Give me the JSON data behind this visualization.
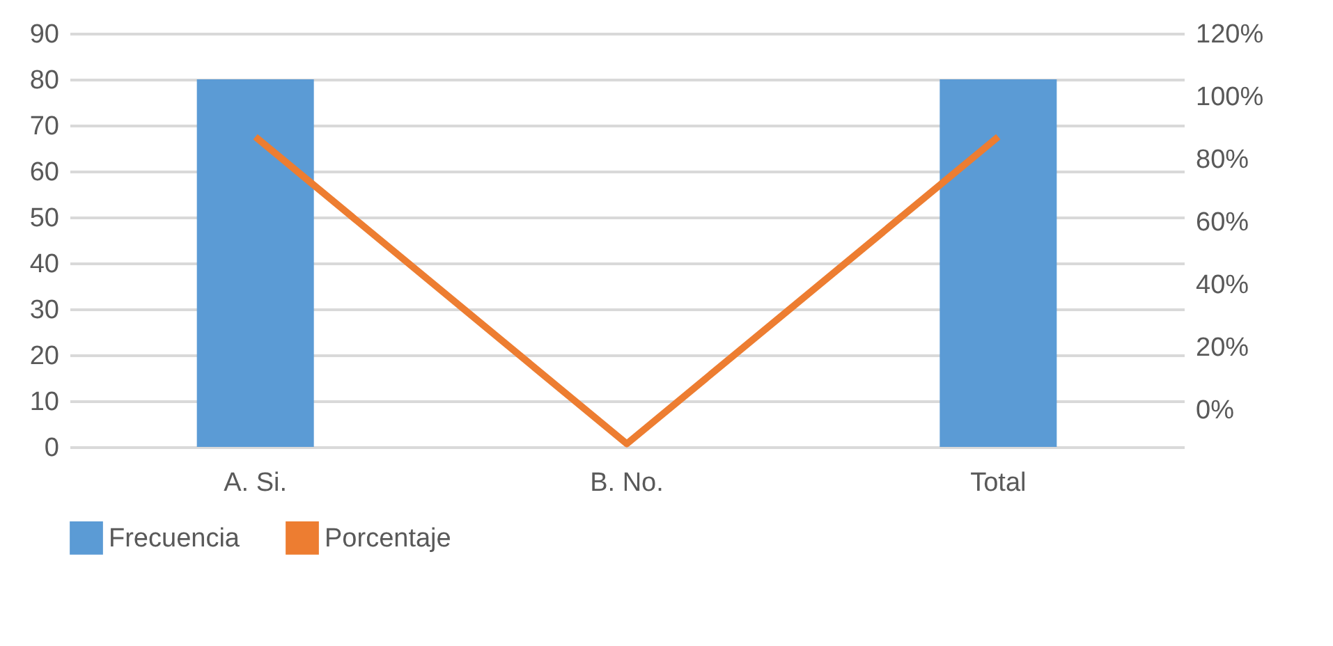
{
  "chart_data": {
    "type": "bar",
    "categories": [
      "A. Si.",
      "B. No.",
      "Total"
    ],
    "series": [
      {
        "name": "Frecuencia",
        "color": "#5b9bd5",
        "values": [
          80,
          0,
          80
        ]
      },
      {
        "name": "Porcentaje",
        "type": "line",
        "axis": "y2",
        "color": "#ed7d31",
        "values": [
          87,
          -11,
          87
        ]
      }
    ],
    "ylim": [
      0,
      90
    ],
    "yticks": [
      0,
      10,
      20,
      30,
      40,
      50,
      60,
      70,
      80,
      90
    ],
    "y2lim": [
      -12,
      120
    ],
    "y2ticks": [
      {
        "value": 0,
        "label": "0%"
      },
      {
        "value": 20,
        "label": "20%"
      },
      {
        "value": 40,
        "label": "40%"
      },
      {
        "value": 60,
        "label": "60%"
      },
      {
        "value": 80,
        "label": "80%"
      },
      {
        "value": 100,
        "label": "100%"
      },
      {
        "value": 120,
        "label": "120%"
      }
    ],
    "grid": "y",
    "legend": "bottom"
  }
}
